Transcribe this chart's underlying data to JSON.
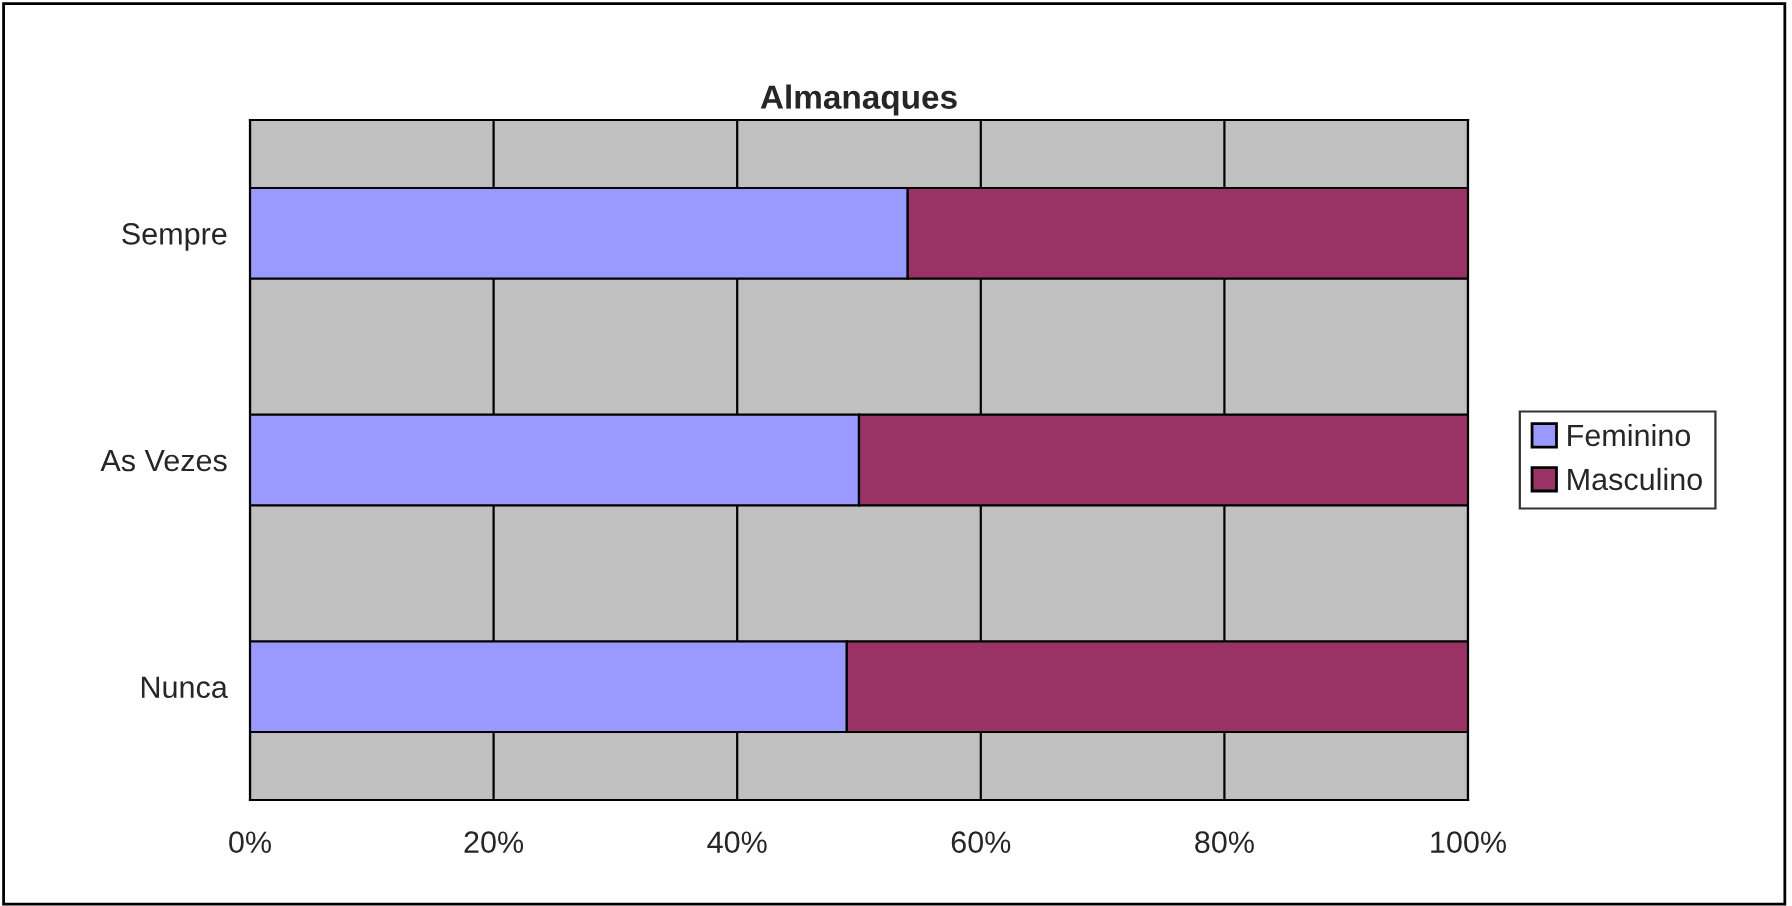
{
  "chart_data": {
    "type": "bar",
    "title": "Almanaques",
    "orientation": "horizontal",
    "stacked": true,
    "categories": [
      "Sempre",
      "As Vezes",
      "Nunca"
    ],
    "series": [
      {
        "name": "Feminino",
        "color": "#9999ff",
        "values": [
          54,
          50,
          49
        ]
      },
      {
        "name": "Masculino",
        "color": "#993366",
        "values": [
          46,
          50,
          51
        ]
      }
    ],
    "xlim": [
      0,
      100
    ],
    "xticks": [
      {
        "value": 0,
        "label": "0%"
      },
      {
        "value": 20,
        "label": "20%"
      },
      {
        "value": 40,
        "label": "40%"
      },
      {
        "value": 60,
        "label": "60%"
      },
      {
        "value": 80,
        "label": "80%"
      },
      {
        "value": 100,
        "label": "100%"
      }
    ],
    "grid": "x",
    "legend": "right"
  }
}
